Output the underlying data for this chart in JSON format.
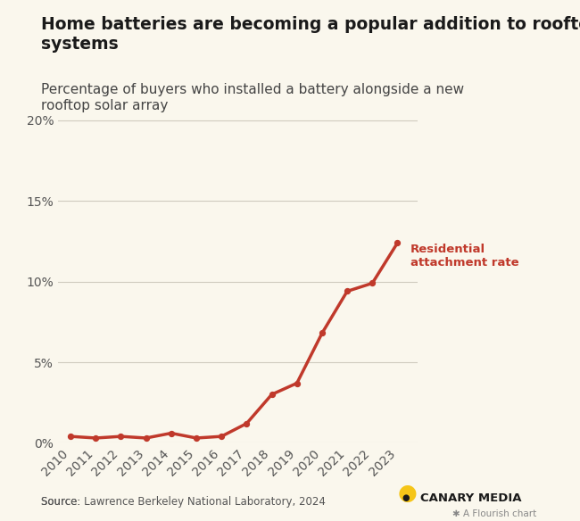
{
  "title": "Home batteries are becoming a popular addition to rooftop solar\nsystems",
  "subtitle": "Percentage of buyers who installed a battery alongside a new\nrooftop solar array",
  "years": [
    2010,
    2011,
    2012,
    2013,
    2014,
    2015,
    2016,
    2017,
    2018,
    2019,
    2020,
    2021,
    2022,
    2023
  ],
  "values": [
    0.004,
    0.003,
    0.004,
    0.003,
    0.006,
    0.003,
    0.004,
    0.012,
    0.03,
    0.037,
    0.068,
    0.094,
    0.099,
    0.124
  ],
  "line_color": "#c0392b",
  "line_width": 2.5,
  "background_color": "#faf7ed",
  "grid_color": "#d0cbbf",
  "ylim": [
    0,
    0.21
  ],
  "yticks": [
    0.0,
    0.05,
    0.1,
    0.15,
    0.2
  ],
  "ytick_labels": [
    "0%",
    "5%",
    "10%",
    "15%",
    "20%"
  ],
  "annotation_text": "Residential\nattachment rate",
  "annotation_color": "#c0392b",
  "source_prefix": "Source: ",
  "source_link": "Lawrence Berkeley National Laboratory, 2024",
  "canary_media_text": "CANARY MEDIA",
  "flourish_text": "✱ A Flourish chart",
  "title_fontsize": 13.5,
  "subtitle_fontsize": 11,
  "tick_fontsize": 10
}
